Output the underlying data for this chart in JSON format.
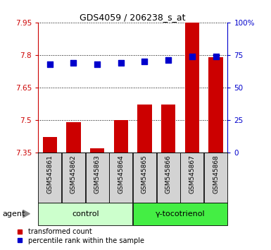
{
  "title": "GDS4059 / 206238_s_at",
  "samples": [
    "GSM545861",
    "GSM545862",
    "GSM545863",
    "GSM545864",
    "GSM545865",
    "GSM545866",
    "GSM545867",
    "GSM545868"
  ],
  "transformed_count": [
    7.42,
    7.49,
    7.37,
    7.5,
    7.57,
    7.57,
    7.95,
    7.79
  ],
  "percentile_rank": [
    68,
    69,
    68,
    69,
    70,
    71,
    74,
    74
  ],
  "ylim_left": [
    7.35,
    7.95
  ],
  "ylim_right": [
    0,
    100
  ],
  "yticks_left": [
    7.35,
    7.5,
    7.65,
    7.8,
    7.95
  ],
  "yticks_right": [
    0,
    25,
    50,
    75,
    100
  ],
  "ytick_labels_left": [
    "7.35",
    "7.5",
    "7.65",
    "7.8",
    "7.95"
  ],
  "ytick_labels_right": [
    "0",
    "25",
    "50",
    "75",
    "100%"
  ],
  "groups": [
    {
      "label": "control",
      "indices": [
        0,
        1,
        2,
        3
      ],
      "color": "#ccffcc"
    },
    {
      "label": "γ-tocotrienol",
      "indices": [
        4,
        5,
        6,
        7
      ],
      "color": "#44ee44"
    }
  ],
  "bar_color": "#cc0000",
  "dot_color": "#0000cc",
  "bar_width": 0.6,
  "dot_size": 30,
  "grid_color": "#000000",
  "bg_color": "#ffffff",
  "plot_bg": "#ffffff",
  "tick_label_color_left": "#cc0000",
  "tick_label_color_right": "#0000cc",
  "title_color": "#000000",
  "sample_bg_color": "#d3d3d3",
  "agent_label": "agent",
  "legend_items": [
    "transformed count",
    "percentile rank within the sample"
  ]
}
